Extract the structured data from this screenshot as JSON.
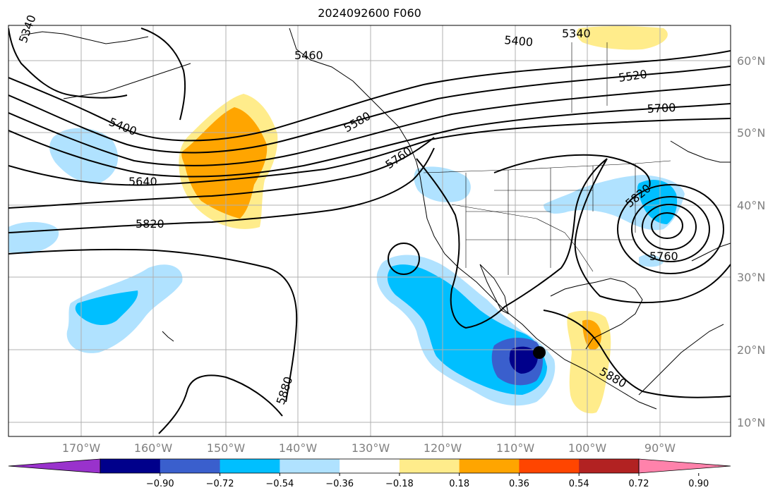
{
  "title": "2024092600 F060",
  "lat_labels": [
    "60°N",
    "50°N",
    "40°N",
    "30°N",
    "20°N",
    "10°N"
  ],
  "lon_labels": [
    "170°W",
    "160°W",
    "150°W",
    "140°W",
    "130°W",
    "120°W",
    "110°W",
    "100°W",
    "90°W"
  ],
  "contour_labels": [
    "5340",
    "5340",
    "5400",
    "5400",
    "5460",
    "5520",
    "5580",
    "5640",
    "5700",
    "5760",
    "5760",
    "5820",
    "5820",
    "5880",
    "5880"
  ],
  "colorbar": {
    "ticks": [
      "−0.90",
      "−0.72",
      "−0.54",
      "−0.36",
      "−0.18",
      "0.18",
      "0.36",
      "0.54",
      "0.72",
      "0.90"
    ],
    "colors": [
      "#9932cc",
      "#00008b",
      "#3a5fcd",
      "#00bfff",
      "#b0e2ff",
      "#ffffff",
      "#ffec8b",
      "#ffa500",
      "#ff4500",
      "#b22222",
      "#ff82ab"
    ]
  },
  "legend_swatches": {
    "neg_dark": "#00008b",
    "neg_mid": "#3a5fcd",
    "neg_light": "#00bfff",
    "neg_pale": "#b0e2ff",
    "pos_pale": "#ffec8b",
    "pos_mid": "#ffa500"
  }
}
